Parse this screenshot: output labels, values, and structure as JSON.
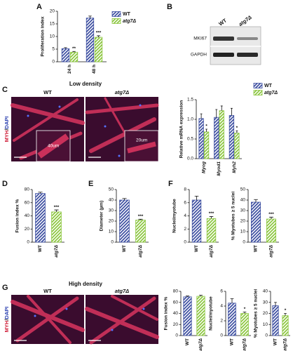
{
  "panel_labels": [
    "A",
    "B",
    "C",
    "D",
    "E",
    "F",
    "G"
  ],
  "blot": {
    "lanes": [
      "WT",
      "atg7Δ"
    ],
    "rows": [
      "MKI67",
      "GAPDH"
    ]
  },
  "micrographs": [
    {
      "title": "Low density",
      "lanes": [
        "WT",
        "atg7Δ"
      ],
      "stain": [
        "MYH",
        "/",
        "DAPI"
      ],
      "scale_labels": [
        "40um",
        "20um"
      ]
    },
    {
      "title": "High density",
      "lanes": [
        "WT",
        "atg7Δ"
      ],
      "stain": [
        "MYH",
        "/",
        "DAPI"
      ]
    }
  ],
  "chart_data": [
    {
      "type": "bar",
      "ylabel": "Proliferation index",
      "categories": [
        "24 h",
        "48 h"
      ],
      "series": [
        {
          "name": "WT",
          "color": "#3d4fa1",
          "values": [
            5.2,
            17.3
          ],
          "errors": [
            0.4,
            0.8
          ]
        },
        {
          "name": "atg7Δ",
          "color": "#8cc63f",
          "values": [
            3.8,
            9.7
          ],
          "errors": [
            0.3,
            0.6
          ]
        }
      ],
      "significance": [
        "**",
        "***"
      ],
      "ylim": [
        0,
        20
      ],
      "yticks": [
        0,
        5,
        10,
        15,
        20
      ],
      "legend": "top-right"
    },
    {
      "type": "bar",
      "ylabel": "Relative mRNA expression",
      "categories": [
        "Myog",
        "Myod1",
        "Myh2"
      ],
      "series": [
        {
          "name": "WT",
          "color": "#3d4fa1",
          "values": [
            1.02,
            1.05,
            1.1
          ],
          "errors": [
            0.12,
            0.2,
            0.18
          ]
        },
        {
          "name": "atg7Δ",
          "color": "#8cc63f",
          "values": [
            0.68,
            1.22,
            0.65
          ],
          "errors": [
            0.07,
            0.12,
            0.06
          ]
        }
      ],
      "significance": [
        "*",
        null,
        "*"
      ],
      "ylim": [
        0,
        1.5
      ],
      "yticks": [
        {
          "value": 0,
          "label": "0.0"
        },
        {
          "value": 0.5,
          "label": "0.5"
        },
        {
          "value": 1,
          "label": "1.0"
        },
        {
          "value": 1.5,
          "label": "1.5"
        }
      ],
      "legend": "top-right"
    },
    {
      "type": "bar",
      "ylabel": "Fusion index %",
      "categories": [
        "WT",
        "atg7Δ"
      ],
      "colors": [
        "#3d4fa1",
        "#8cc63f"
      ],
      "values": [
        74,
        46
      ],
      "errors": [
        2,
        3
      ],
      "significance": [
        null,
        "***"
      ],
      "ylim": [
        0,
        80
      ],
      "yticks": [
        0,
        20,
        40,
        60,
        80
      ]
    },
    {
      "type": "bar",
      "ylabel": "Diameter (µm)",
      "categories": [
        "WT",
        "atg7Δ"
      ],
      "colors": [
        "#3d4fa1",
        "#8cc63f"
      ],
      "values": [
        40,
        21
      ],
      "errors": [
        1.5,
        0.8
      ],
      "significance": [
        null,
        "***"
      ],
      "ylim": [
        0,
        50
      ],
      "yticks": [
        0,
        10,
        20,
        30,
        40,
        50
      ]
    },
    {
      "type": "bar",
      "ylabel": "Nuclei/myotube",
      "categories": [
        "WT",
        "atg7Δ"
      ],
      "colors": [
        "#3d4fa1",
        "#8cc63f"
      ],
      "values": [
        6.4,
        3.6
      ],
      "errors": [
        0.6,
        0.3
      ],
      "significance": [
        null,
        "***"
      ],
      "ylim": [
        0,
        8
      ],
      "yticks": [
        0,
        2,
        4,
        6,
        8
      ]
    },
    {
      "type": "bar",
      "ylabel": "% Myotubes ≥ 5 nuclei",
      "categories": [
        "WT",
        "atg7Δ"
      ],
      "colors": [
        "#3d4fa1",
        "#8cc63f"
      ],
      "values": [
        38,
        22
      ],
      "errors": [
        2.5,
        1.8
      ],
      "significance": [
        null,
        "***"
      ],
      "ylim": [
        0,
        50
      ],
      "yticks": [
        0,
        10,
        20,
        30,
        40,
        50
      ]
    },
    {
      "type": "bar",
      "ylabel": "Fusion index %",
      "categories": [
        "WT",
        "atg7Δ"
      ],
      "colors": [
        "#3d4fa1",
        "#8cc63f"
      ],
      "values": [
        70,
        71
      ],
      "errors": [
        1.5,
        2
      ],
      "significance": [
        null,
        null
      ],
      "ylim": [
        0,
        80
      ],
      "yticks": [
        0,
        20,
        40,
        60,
        80
      ]
    },
    {
      "type": "bar",
      "ylabel": "Nuclei/myotube",
      "categories": [
        "WT",
        "atg7Δ"
      ],
      "colors": [
        "#3d4fa1",
        "#8cc63f"
      ],
      "values": [
        4.4,
        3.0
      ],
      "errors": [
        0.6,
        0.2
      ],
      "significance": [
        null,
        "*"
      ],
      "ylim": [
        0,
        6
      ],
      "yticks": [
        0,
        2,
        4,
        6
      ]
    },
    {
      "type": "bar",
      "ylabel": "% Myotubes ≥ 5 nuclei",
      "categories": [
        "WT",
        "atg7Δ"
      ],
      "colors": [
        "#3d4fa1",
        "#8cc63f"
      ],
      "values": [
        27,
        18
      ],
      "errors": [
        3,
        2
      ],
      "significance": [
        null,
        "*"
      ],
      "ylim": [
        0,
        40
      ],
      "yticks": [
        0,
        10,
        20,
        30,
        40
      ]
    }
  ]
}
